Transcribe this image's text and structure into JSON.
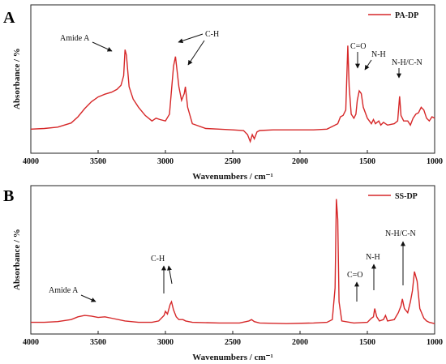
{
  "chart_data": [
    {
      "type": "line",
      "panel": "A",
      "ylabel": "Absorbance / %",
      "xlabel": "Wavenumbers / cm⁻¹",
      "xlim": [
        4000,
        1000
      ],
      "x_ticks": [
        4000,
        3500,
        3000,
        2500,
        2000,
        1500,
        1000
      ],
      "ylim": [
        0,
        1
      ],
      "line_color": "#d62728",
      "series": [
        {
          "name": "PA-DP",
          "points": [
            [
              4000,
              0.14
            ],
            [
              3900,
              0.145
            ],
            [
              3800,
              0.155
            ],
            [
              3700,
              0.185
            ],
            [
              3650,
              0.23
            ],
            [
              3600,
              0.29
            ],
            [
              3550,
              0.34
            ],
            [
              3500,
              0.375
            ],
            [
              3450,
              0.395
            ],
            [
              3400,
              0.41
            ],
            [
              3360,
              0.43
            ],
            [
              3330,
              0.46
            ],
            [
              3310,
              0.53
            ],
            [
              3300,
              0.72
            ],
            [
              3290,
              0.68
            ],
            [
              3270,
              0.45
            ],
            [
              3240,
              0.36
            ],
            [
              3200,
              0.3
            ],
            [
              3150,
              0.24
            ],
            [
              3100,
              0.2
            ],
            [
              3070,
              0.22
            ],
            [
              3040,
              0.21
            ],
            [
              3000,
              0.2
            ],
            [
              2970,
              0.25
            ],
            [
              2940,
              0.6
            ],
            [
              2925,
              0.67
            ],
            [
              2900,
              0.45
            ],
            [
              2880,
              0.35
            ],
            [
              2860,
              0.4
            ],
            [
              2852,
              0.45
            ],
            [
              2835,
              0.3
            ],
            [
              2800,
              0.18
            ],
            [
              2700,
              0.145
            ],
            [
              2600,
              0.14
            ],
            [
              2500,
              0.135
            ],
            [
              2420,
              0.13
            ],
            [
              2390,
              0.1
            ],
            [
              2370,
              0.05
            ],
            [
              2355,
              0.1
            ],
            [
              2340,
              0.07
            ],
            [
              2320,
              0.12
            ],
            [
              2300,
              0.13
            ],
            [
              2200,
              0.135
            ],
            [
              2100,
              0.135
            ],
            [
              2000,
              0.135
            ],
            [
              1900,
              0.135
            ],
            [
              1800,
              0.14
            ],
            [
              1760,
              0.16
            ],
            [
              1720,
              0.18
            ],
            [
              1700,
              0.23
            ],
            [
              1680,
              0.24
            ],
            [
              1660,
              0.28
            ],
            [
              1645,
              0.75
            ],
            [
              1635,
              0.45
            ],
            [
              1620,
              0.25
            ],
            [
              1600,
              0.22
            ],
            [
              1585,
              0.25
            ],
            [
              1575,
              0.35
            ],
            [
              1560,
              0.42
            ],
            [
              1545,
              0.4
            ],
            [
              1530,
              0.3
            ],
            [
              1500,
              0.22
            ],
            [
              1470,
              0.18
            ],
            [
              1455,
              0.21
            ],
            [
              1440,
              0.18
            ],
            [
              1415,
              0.2
            ],
            [
              1400,
              0.17
            ],
            [
              1380,
              0.19
            ],
            [
              1350,
              0.17
            ],
            [
              1300,
              0.18
            ],
            [
              1275,
              0.2
            ],
            [
              1260,
              0.38
            ],
            [
              1250,
              0.24
            ],
            [
              1230,
              0.2
            ],
            [
              1200,
              0.2
            ],
            [
              1180,
              0.17
            ],
            [
              1160,
              0.22
            ],
            [
              1140,
              0.25
            ],
            [
              1120,
              0.26
            ],
            [
              1100,
              0.3
            ],
            [
              1080,
              0.28
            ],
            [
              1060,
              0.22
            ],
            [
              1040,
              0.2
            ],
            [
              1020,
              0.23
            ],
            [
              1000,
              0.22
            ]
          ]
        }
      ],
      "annotations": [
        "Amide A",
        "C-H",
        "C=O",
        "N-H",
        "N-H/C-N"
      ]
    },
    {
      "type": "line",
      "panel": "B",
      "ylabel": "Absorbance / %",
      "xlabel": "Wavenumbers / cm⁻¹",
      "xlim": [
        4000,
        1000
      ],
      "x_ticks": [
        4000,
        3500,
        3000,
        2500,
        2000,
        1500,
        1000
      ],
      "ylim": [
        0,
        1
      ],
      "line_color": "#d62728",
      "series": [
        {
          "name": "SS-DP",
          "points": [
            [
              4000,
              0.05
            ],
            [
              3900,
              0.05
            ],
            [
              3800,
              0.055
            ],
            [
              3700,
              0.07
            ],
            [
              3650,
              0.09
            ],
            [
              3600,
              0.1
            ],
            [
              3550,
              0.095
            ],
            [
              3500,
              0.085
            ],
            [
              3450,
              0.09
            ],
            [
              3400,
              0.08
            ],
            [
              3300,
              0.06
            ],
            [
              3200,
              0.05
            ],
            [
              3100,
              0.05
            ],
            [
              3050,
              0.06
            ],
            [
              3010,
              0.1
            ],
            [
              3000,
              0.13
            ],
            [
              2985,
              0.11
            ],
            [
              2965,
              0.18
            ],
            [
              2955,
              0.2
            ],
            [
              2940,
              0.14
            ],
            [
              2920,
              0.09
            ],
            [
              2900,
              0.07
            ],
            [
              2870,
              0.07
            ],
            [
              2850,
              0.06
            ],
            [
              2800,
              0.05
            ],
            [
              2600,
              0.045
            ],
            [
              2450,
              0.045
            ],
            [
              2380,
              0.06
            ],
            [
              2360,
              0.07
            ],
            [
              2340,
              0.055
            ],
            [
              2300,
              0.045
            ],
            [
              2100,
              0.04
            ],
            [
              1900,
              0.045
            ],
            [
              1800,
              0.05
            ],
            [
              1760,
              0.07
            ],
            [
              1740,
              0.3
            ],
            [
              1730,
              0.95
            ],
            [
              1720,
              0.8
            ],
            [
              1710,
              0.2
            ],
            [
              1690,
              0.06
            ],
            [
              1600,
              0.045
            ],
            [
              1500,
              0.05
            ],
            [
              1470,
              0.08
            ],
            [
              1455,
              0.09
            ],
            [
              1445,
              0.15
            ],
            [
              1430,
              0.09
            ],
            [
              1410,
              0.06
            ],
            [
              1380,
              0.07
            ],
            [
              1365,
              0.1
            ],
            [
              1350,
              0.06
            ],
            [
              1300,
              0.07
            ],
            [
              1270,
              0.12
            ],
            [
              1250,
              0.17
            ],
            [
              1240,
              0.22
            ],
            [
              1225,
              0.15
            ],
            [
              1200,
              0.12
            ],
            [
              1180,
              0.2
            ],
            [
              1165,
              0.28
            ],
            [
              1150,
              0.42
            ],
            [
              1130,
              0.35
            ],
            [
              1110,
              0.15
            ],
            [
              1080,
              0.08
            ],
            [
              1060,
              0.06
            ],
            [
              1040,
              0.05
            ],
            [
              1000,
              0.04
            ]
          ]
        }
      ],
      "annotations": [
        "Amide A",
        "C-H",
        "C=O",
        "N-H",
        "N-H/C-N"
      ]
    }
  ]
}
